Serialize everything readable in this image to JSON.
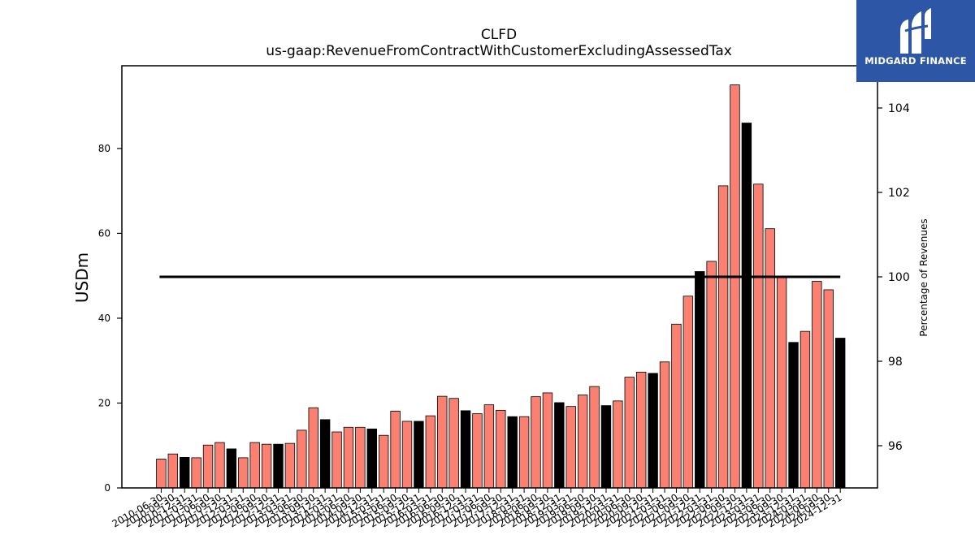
{
  "brand": {
    "name": "MIDGARD FINANCE",
    "color": "#2e56a6"
  },
  "chart_data": {
    "type": "bar",
    "title": "CLFD",
    "subtitle": "us-gaap:RevenueFromContractWithCustomerExcludingAssessedTax",
    "ylabel": "USDm",
    "ylabel_right": "Percentage of Revenues",
    "ylim": [
      0,
      99.5
    ],
    "ylim_right": [
      95.0,
      105.0
    ],
    "yticks": [
      0,
      20,
      40,
      60,
      80
    ],
    "yticks_right": [
      96,
      98,
      100,
      102,
      104
    ],
    "grid": false,
    "colors": {
      "quarter": "#fa8072",
      "annual": "#000000",
      "reference_line": "#000000"
    },
    "reference_line": {
      "axis": "right",
      "value": 100
    },
    "categories": [
      "2010-06-30",
      "2010-09-30",
      "2010-12-31",
      "2011-03-31",
      "2011-06-30",
      "2011-09-30",
      "2011-12-31",
      "2012-03-31",
      "2012-06-30",
      "2012-09-30",
      "2012-12-31",
      "2013-03-31",
      "2013-06-30",
      "2013-09-30",
      "2013-12-31",
      "2014-03-31",
      "2014-06-30",
      "2014-09-30",
      "2014-12-31",
      "2015-03-31",
      "2015-06-30",
      "2015-09-30",
      "2015-12-31",
      "2016-03-31",
      "2016-06-30",
      "2016-09-30",
      "2016-12-31",
      "2017-03-31",
      "2017-06-30",
      "2017-09-30",
      "2017-12-31",
      "2018-03-31",
      "2018-06-30",
      "2018-09-30",
      "2018-12-31",
      "2019-03-31",
      "2019-06-30",
      "2019-09-30",
      "2019-12-31",
      "2020-03-31",
      "2020-06-30",
      "2020-09-30",
      "2020-12-31",
      "2021-03-31",
      "2021-06-30",
      "2021-09-30",
      "2021-12-31",
      "2022-03-31",
      "2022-06-30",
      "2022-09-30",
      "2022-12-31",
      "2023-03-31",
      "2023-06-30",
      "2023-09-30",
      "2023-12-31",
      "2024-03-31",
      "2024-06-30",
      "2024-09-30",
      "2024-12-31"
    ],
    "values": [
      6.8,
      8.0,
      7.2,
      7.1,
      10.1,
      10.7,
      9.2,
      7.1,
      10.7,
      10.3,
      10.3,
      10.5,
      13.6,
      18.9,
      16.1,
      13.2,
      14.3,
      14.3,
      13.9,
      12.4,
      18.1,
      15.7,
      15.7,
      17.0,
      21.6,
      21.1,
      18.2,
      17.5,
      19.6,
      18.3,
      16.8,
      16.8,
      21.5,
      22.4,
      20.1,
      19.2,
      21.9,
      23.9,
      19.4,
      20.5,
      26.1,
      27.3,
      27.0,
      29.7,
      38.6,
      45.2,
      51.0,
      53.4,
      71.2,
      95.0,
      86.0,
      71.6,
      61.1,
      49.6,
      34.3,
      36.9,
      48.7,
      46.7,
      35.3
    ],
    "annual": [
      false,
      false,
      true,
      false,
      false,
      false,
      true,
      false,
      false,
      false,
      true,
      false,
      false,
      false,
      true,
      false,
      false,
      false,
      true,
      false,
      false,
      false,
      true,
      false,
      false,
      false,
      true,
      false,
      false,
      false,
      true,
      false,
      false,
      false,
      true,
      false,
      false,
      false,
      true,
      false,
      false,
      false,
      true,
      false,
      false,
      false,
      true,
      false,
      false,
      false,
      true,
      false,
      false,
      false,
      true,
      false,
      false,
      false,
      true
    ]
  }
}
